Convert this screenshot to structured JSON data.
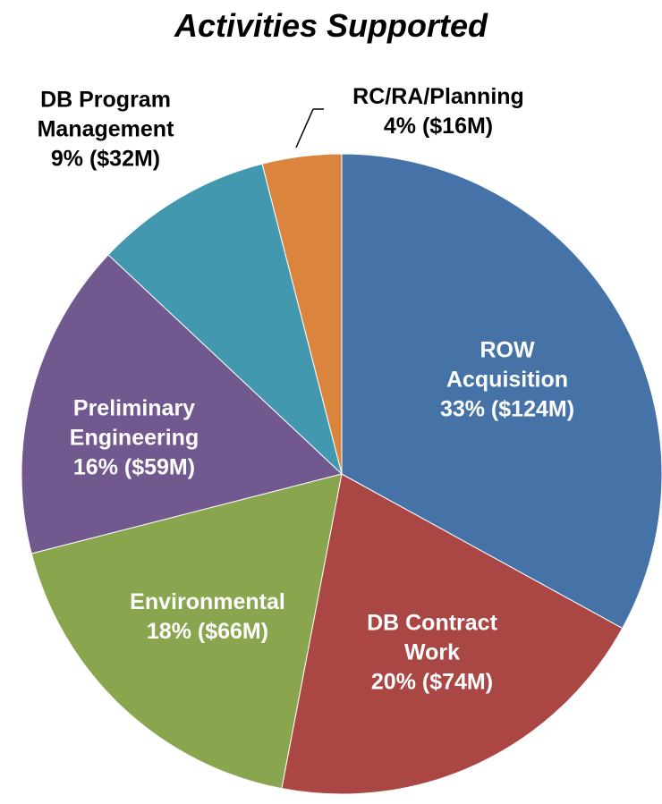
{
  "chart_data": {
    "type": "pie",
    "title": "Activities Supported",
    "categories": [
      "ROW Acquisition",
      "DB Contract Work",
      "Environmental",
      "Preliminary Engineering",
      "DB Program Management",
      "RC/RA/Planning"
    ],
    "values": [
      33,
      20,
      18,
      16,
      9,
      4
    ],
    "value_labels": [
      "33% ($124M)",
      "20% ($74M)",
      "18% ($66M)",
      "16% ($59M)",
      "9% ($32M)",
      "4% ($16M)"
    ],
    "colors": [
      "#4572a7",
      "#aa4643",
      "#89a54e",
      "#71588f",
      "#4198af",
      "#db843d"
    ]
  }
}
